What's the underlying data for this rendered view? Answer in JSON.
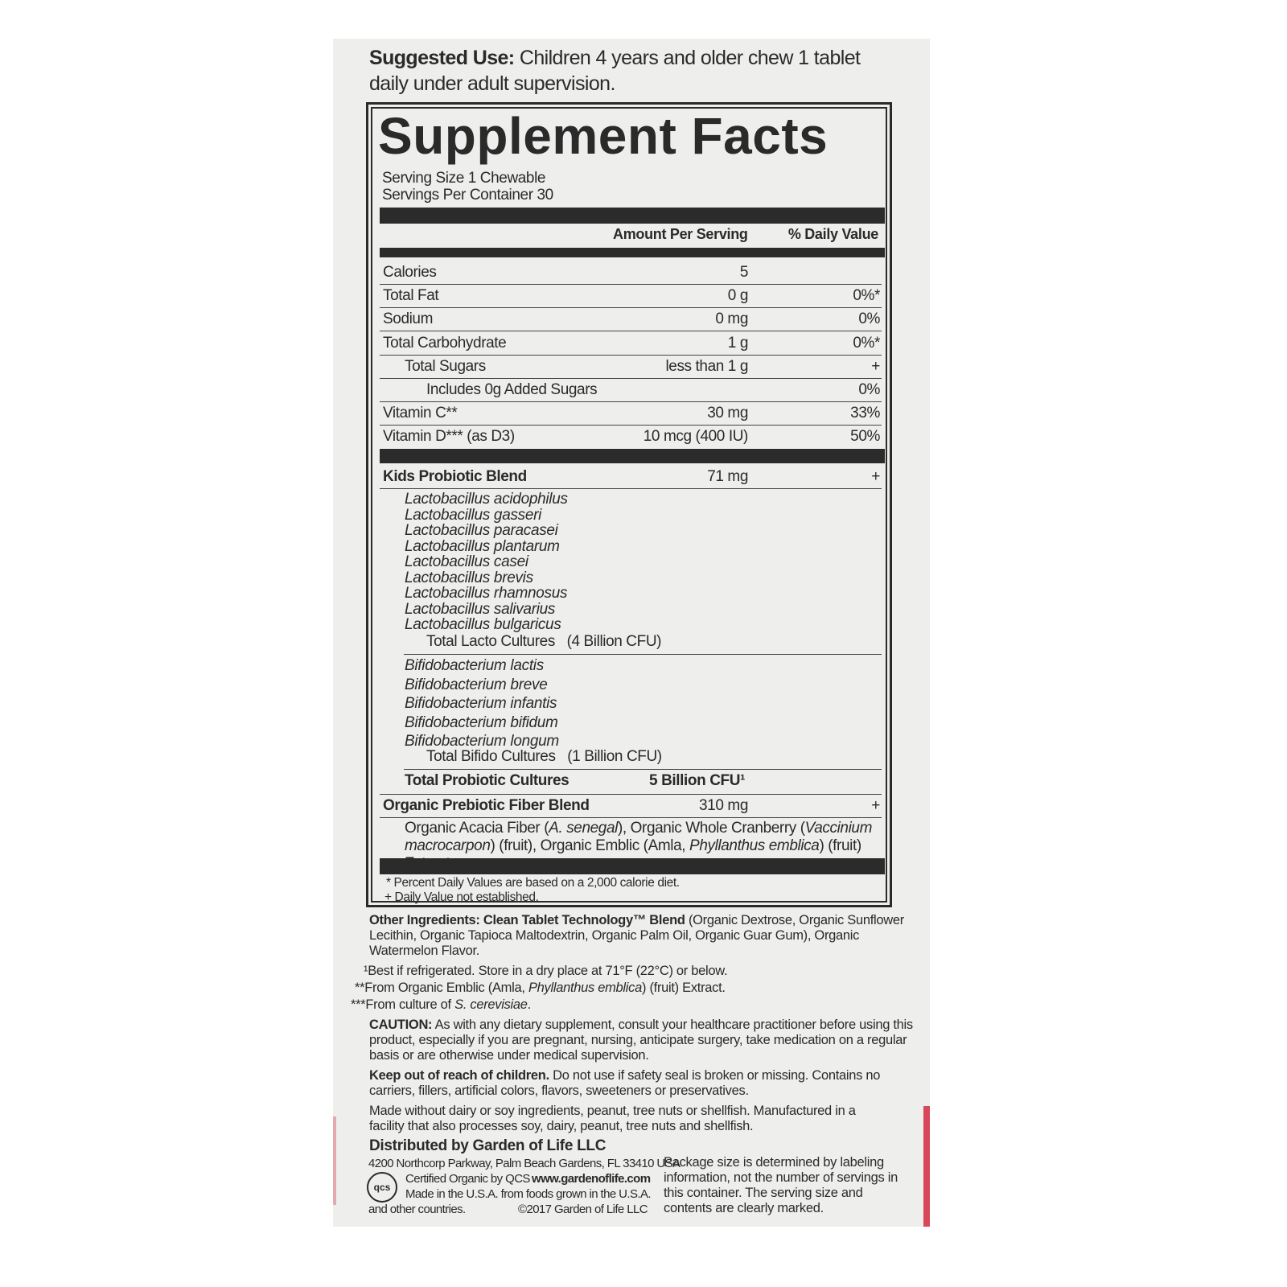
{
  "suggested_use": {
    "label": "Suggested Use:",
    "text": " Children 4 years and older chew 1 tablet daily under adult supervision."
  },
  "facts": {
    "title": "Supplement Facts",
    "serving_size": "Serving Size 1 Chewable",
    "servings_per_container": "Servings Per Container 30",
    "header_amount": "Amount Per Serving",
    "header_dv": "% Daily Value",
    "nutrients": [
      {
        "name": "Calories",
        "amount": "5",
        "dv": ""
      },
      {
        "name": "Total Fat",
        "amount": "0 g",
        "dv": "0%*"
      },
      {
        "name": "Sodium",
        "amount": "0 mg",
        "dv": "0%"
      },
      {
        "name": "Total Carbohydrate",
        "amount": "1 g",
        "dv": "0%*"
      },
      {
        "name": "Total Sugars",
        "amount": "less than 1 g",
        "dv": "+"
      },
      {
        "name": "Includes 0g Added Sugars",
        "amount": "",
        "dv": "0%"
      },
      {
        "name": "Vitamin C**",
        "amount": "30 mg",
        "dv": "33%"
      },
      {
        "name": "Vitamin D*** (as D3)",
        "amount": "10 mcg (400 IU)",
        "dv": "50%"
      }
    ],
    "probiotic": {
      "name": "Kids Probiotic Blend",
      "amount": "71 mg",
      "dv": "+"
    },
    "lacto": [
      "Lactobacillus acidophilus",
      "Lactobacillus gasseri",
      "Lactobacillus paracasei",
      "Lactobacillus plantarum",
      "Lactobacillus casei",
      "Lactobacillus brevis",
      "Lactobacillus rhamnosus",
      "Lactobacillus salivarius",
      "Lactobacillus bulgaricus"
    ],
    "lacto_total": {
      "label": "Total Lacto Cultures",
      "value": "(4 Billion CFU)"
    },
    "bifido": [
      "Bifidobacterium lactis",
      "Bifidobacterium breve",
      "Bifidobacterium infantis",
      "Bifidobacterium bifidum",
      "Bifidobacterium longum"
    ],
    "bifido_total": {
      "label": "Total Bifido Cultures",
      "value": "(1 Billion CFU)"
    },
    "total_probiotic": {
      "label": "Total Probiotic Cultures",
      "value": "5 Billion CFU¹"
    },
    "prebiotic": {
      "name": "Organic Prebiotic Fiber Blend",
      "amount": "310 mg",
      "dv": "+"
    },
    "prebiotic_detail": {
      "p1": "Organic Acacia Fiber (",
      "i1": "A. senegal",
      "p2": "), Organic Whole Cranberry (",
      "i2": "Vaccinium macrocarpon",
      "p3": ") (fruit), Organic Emblic (Amla, ",
      "i3": "Phyllanthus emblica",
      "p4": ") (fruit) Extract"
    },
    "footnote1": "* Percent Daily Values are based on a 2,000 calorie diet.",
    "footnote2": "+ Daily Value not established."
  },
  "other_ingredients": {
    "label": "Other Ingredients: Clean Tablet Technology™ Blend",
    "text": " (Organic Dextrose, Organic Sunflower Lecithin, Organic Tapioca Maltodextrin, Organic Palm Oil, Organic Guar Gum), Organic Watermelon Flavor."
  },
  "notes": {
    "n1": "¹Best if refrigerated. Store in a dry place at 71°F (22°C) or below.",
    "n2a": "**From Organic Emblic (Amla, ",
    "n2i": "Phyllanthus emblica",
    "n2b": ") (fruit) Extract.",
    "n3a": "***From culture of ",
    "n3i": "S. cerevisiae",
    "n3b": "."
  },
  "caution": {
    "label": "CAUTION:",
    "text": " As with any dietary supplement, consult your healthcare practitioner before using this product, especially if you are pregnant, nursing, anticipate surgery, take medication on a regular basis or are otherwise under medical supervision."
  },
  "keep_out": {
    "label": "Keep out of reach of children.",
    "text": " Do not use if safety seal is broken or missing. Contains no carriers, fillers, artificial colors, flavors, sweeteners or preservatives."
  },
  "allergen": "Made without dairy or soy ingredients, peanut, tree nuts or shellfish. Manufactured in a facility that also processes soy, dairy, peanut, tree nuts and shellfish.",
  "distributor": {
    "title": "Distributed by Garden of Life LLC",
    "address": "4200 Northcorp Parkway, Palm Beach Gardens, FL 33410 USA",
    "certified": "Certified Organic by QCS",
    "website": "www.gardenoflife.com",
    "made_in": "Made in the U.S.A. from foods grown in the U.S.A.",
    "other_countries": "and other countries.",
    "copyright": "©2017 Garden of Life LLC",
    "qcs_logo": "qcs"
  },
  "package_note": "Package size is determined by labeling information, not the number of servings in this container. The serving size and contents are clearly marked."
}
